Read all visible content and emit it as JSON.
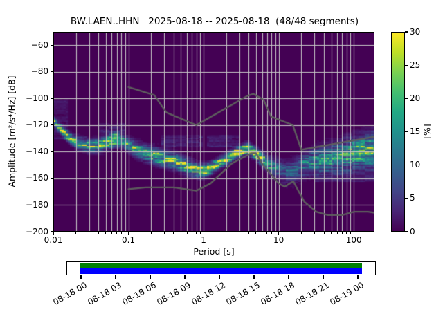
{
  "title": "BW.LAEN..HHN   2025-08-18 -- 2025-08-18  (48/48 segments)",
  "axes": {
    "x": {
      "label": "Period [s]",
      "scale": "log",
      "range": [
        0.01,
        188
      ],
      "ticks": [
        {
          "v": 0.01,
          "t": "0.01"
        },
        {
          "v": 0.1,
          "t": "0.1"
        },
        {
          "v": 1,
          "t": "1"
        },
        {
          "v": 10,
          "t": "10"
        },
        {
          "v": 100,
          "t": "100"
        }
      ]
    },
    "y": {
      "label": "Amplitude [m²/s⁴/Hz] [dB]",
      "range": [
        -200,
        -50
      ],
      "ticks": [
        {
          "v": -60,
          "t": "−60"
        },
        {
          "v": -80,
          "t": "−80"
        },
        {
          "v": -100,
          "t": "−100"
        },
        {
          "v": -120,
          "t": "−120"
        },
        {
          "v": -140,
          "t": "−140"
        },
        {
          "v": -160,
          "t": "−160"
        },
        {
          "v": -180,
          "t": "−180"
        },
        {
          "v": -200,
          "t": "−200"
        }
      ]
    }
  },
  "colorbar": {
    "label": "[%]",
    "range": [
      0,
      30
    ],
    "ticks": [
      {
        "v": 0,
        "t": "0"
      },
      {
        "v": 5,
        "t": "5"
      },
      {
        "v": 10,
        "t": "10"
      },
      {
        "v": 15,
        "t": "15"
      },
      {
        "v": 20,
        "t": "20"
      },
      {
        "v": 25,
        "t": "25"
      },
      {
        "v": 30,
        "t": "30"
      }
    ],
    "colormap": "viridis"
  },
  "colors": {
    "background": "#440154",
    "grid": "#c9c9c9",
    "noise_model": "#5e5e5e",
    "coverage_green": "#008000",
    "coverage_blue": "#0000ff",
    "viridis_stops": [
      "#440154",
      "#482475",
      "#414487",
      "#355f8d",
      "#2a788e",
      "#21918c",
      "#22a884",
      "#44bf70",
      "#7ad151",
      "#bddf26",
      "#fde725"
    ]
  },
  "chart_data": {
    "type": "heatmap",
    "title": "BW.LAEN..HHN   2025-08-18 -- 2025-08-18  (48/48 segments)",
    "xlabel": "Period [s]",
    "ylabel": "Amplitude [m²/s⁴/Hz] [dB]",
    "xlim_log": [
      0.01,
      188
    ],
    "ylim": [
      -200,
      -50
    ],
    "colorbar_label": "[%]",
    "colorbar_range": [
      0,
      30
    ],
    "grid_y_db": [
      -180,
      -160,
      -140,
      -120,
      -100,
      -80,
      -60
    ],
    "ridge_mode_spread_peak": [
      [
        0.01,
        -116.5,
        1.6,
        30
      ],
      [
        0.0125,
        -123.0,
        2.0,
        26
      ],
      [
        0.016,
        -129.0,
        2.3,
        24
      ],
      [
        0.021,
        -133.5,
        2.6,
        21
      ],
      [
        0.03,
        -135.5,
        2.8,
        20
      ],
      [
        0.042,
        -135.0,
        3.0,
        20
      ],
      [
        0.055,
        -132.5,
        3.2,
        21
      ],
      [
        0.068,
        -130.5,
        3.0,
        23
      ],
      [
        0.085,
        -132.0,
        3.0,
        20
      ],
      [
        0.12,
        -137.5,
        3.4,
        18
      ],
      [
        0.18,
        -141.5,
        3.6,
        19
      ],
      [
        0.28,
        -144.5,
        3.6,
        21
      ],
      [
        0.45,
        -148.0,
        3.6,
        21
      ],
      [
        0.62,
        -151.5,
        3.4,
        22
      ],
      [
        0.8,
        -153.5,
        3.0,
        24
      ],
      [
        1.0,
        -154.3,
        2.8,
        26
      ],
      [
        1.2,
        -152.8,
        2.6,
        26
      ],
      [
        1.5,
        -149.5,
        2.5,
        27
      ],
      [
        2.0,
        -145.5,
        2.5,
        28
      ],
      [
        2.8,
        -140.5,
        2.4,
        30
      ],
      [
        3.9,
        -137.6,
        2.4,
        30
      ],
      [
        5.2,
        -142.5,
        2.7,
        26
      ],
      [
        7.0,
        -148.5,
        3.4,
        18
      ],
      [
        9.0,
        -152.5,
        4.4,
        12
      ],
      [
        12,
        -155.5,
        5.0,
        8.5
      ],
      [
        16,
        -154.5,
        5.5,
        8.5
      ],
      [
        22,
        -149.0,
        5.5,
        12
      ],
      [
        35,
        -146.0,
        6.0,
        14
      ],
      [
        60,
        -143.5,
        6.5,
        16
      ],
      [
        100,
        -140.8,
        7.0,
        18
      ],
      [
        188,
        -138.8,
        7.5,
        20
      ]
    ],
    "halos": [
      {
        "p1": 0.01,
        "p2": 0.016,
        "db1": -130,
        "db2": -101,
        "peak": 2.5
      },
      {
        "p1": 0.04,
        "p2": 0.095,
        "db1": -127,
        "db2": -119,
        "peak": 3
      },
      {
        "p1": 0.28,
        "p2": 0.95,
        "db1": -136,
        "db2": -128,
        "peak": 3.5
      },
      {
        "p1": 1.1,
        "p2": 3.0,
        "db1": -136,
        "db2": -128,
        "peak": 3.5
      },
      {
        "p1": 30,
        "p2": 188,
        "db1": -162,
        "db2": -152,
        "peak": 3
      }
    ],
    "noise_models": {
      "nhnm": [
        [
          0.1,
          -91.5
        ],
        [
          0.22,
          -97.4
        ],
        [
          0.32,
          -110.5
        ],
        [
          0.8,
          -120.0
        ],
        [
          3.8,
          -98.1
        ],
        [
          4.6,
          -96.5
        ],
        [
          6.3,
          -101.0
        ],
        [
          7.9,
          -113.5
        ],
        [
          15.4,
          -120.0
        ],
        [
          20,
          -138.5
        ],
        [
          188,
          -128.7
        ]
      ],
      "nlnm": [
        [
          0.1,
          -168.0
        ],
        [
          0.17,
          -166.7
        ],
        [
          0.4,
          -166.7
        ],
        [
          0.8,
          -169.2
        ],
        [
          1.24,
          -163.7
        ],
        [
          2.4,
          -148.6
        ],
        [
          4.3,
          -141.1
        ],
        [
          5.0,
          -141.1
        ],
        [
          6.0,
          -149.0
        ],
        [
          10.0,
          -163.8
        ],
        [
          12.0,
          -166.2
        ],
        [
          15.6,
          -162.1
        ],
        [
          21.9,
          -177.5
        ],
        [
          31.6,
          -185.0
        ],
        [
          45,
          -187.5
        ],
        [
          70,
          -187.5
        ],
        [
          101,
          -185.0
        ],
        [
          154,
          -185.0
        ],
        [
          188,
          -185.7
        ]
      ]
    }
  },
  "coverage": {
    "tick_labels": [
      "08-18 00",
      "08-18 03",
      "08-18 06",
      "08-18 09",
      "08-18 12",
      "08-18 15",
      "08-18 18",
      "08-18 21",
      "08-19 00"
    ]
  }
}
